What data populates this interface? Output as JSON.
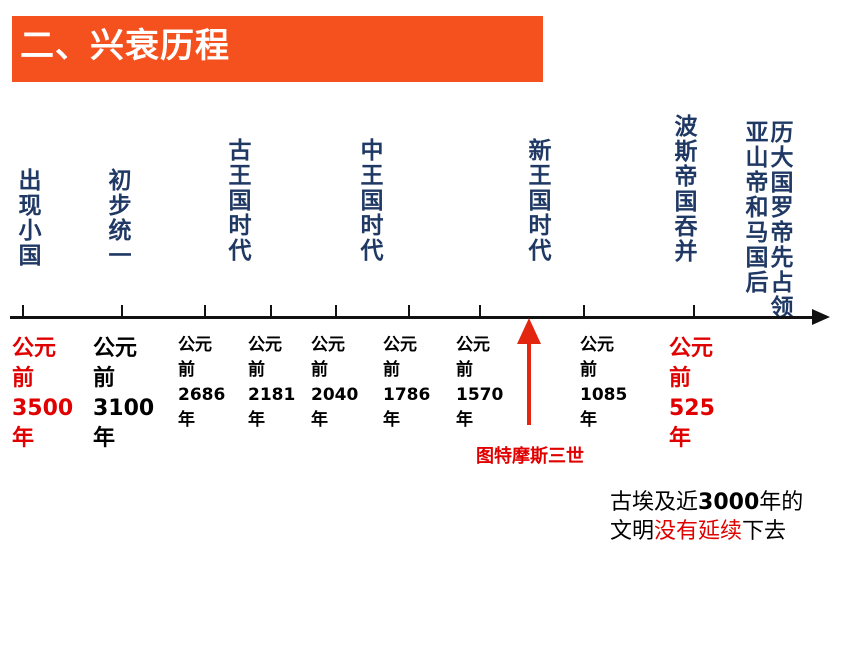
{
  "title": "二、兴衰历程",
  "periods": [
    {
      "label": "出现小国"
    },
    {
      "label": "初步统一"
    },
    {
      "label": "古王国时代"
    },
    {
      "label": "中王国时代"
    },
    {
      "label": "新王国时代"
    },
    {
      "label": "波斯帝国吞并"
    },
    {
      "label_col1": "亚山帝和马国后",
      "label_col2": "历大国罗帝先占领"
    }
  ],
  "dates": [
    {
      "l1": "公元",
      "l2": "前",
      "num": "3500",
      "l4": "年"
    },
    {
      "l1": "公元",
      "l2": "前",
      "num": "3100",
      "l4": "年"
    },
    {
      "l1": "公元",
      "l2": "前",
      "num": "2686",
      "l4": "年"
    },
    {
      "l1": "公元",
      "l2": "前",
      "num": "2181",
      "l4": "年"
    },
    {
      "l1": "公元",
      "l2": "前",
      "num": "2040",
      "l4": "年"
    },
    {
      "l1": "公元",
      "l2": "前",
      "num": "1786",
      "l4": "年"
    },
    {
      "l1": "公元",
      "l2": "前",
      "num": "1570",
      "l4": "年"
    },
    {
      "l1": "公元",
      "l2": "前",
      "num": "1085",
      "l4": "年"
    },
    {
      "l1": "公元",
      "l2": "前",
      "num": "525",
      "l4": "年"
    }
  ],
  "pharaoh": "图特摩斯三世",
  "note": {
    "part1": "古埃及近",
    "num": "3000",
    "part2": "年的文明",
    "highlight": "没有延续",
    "part3": "下去"
  },
  "colors": {
    "banner": "#F4511E",
    "label": "#1F3864",
    "accent": "#E00000"
  }
}
